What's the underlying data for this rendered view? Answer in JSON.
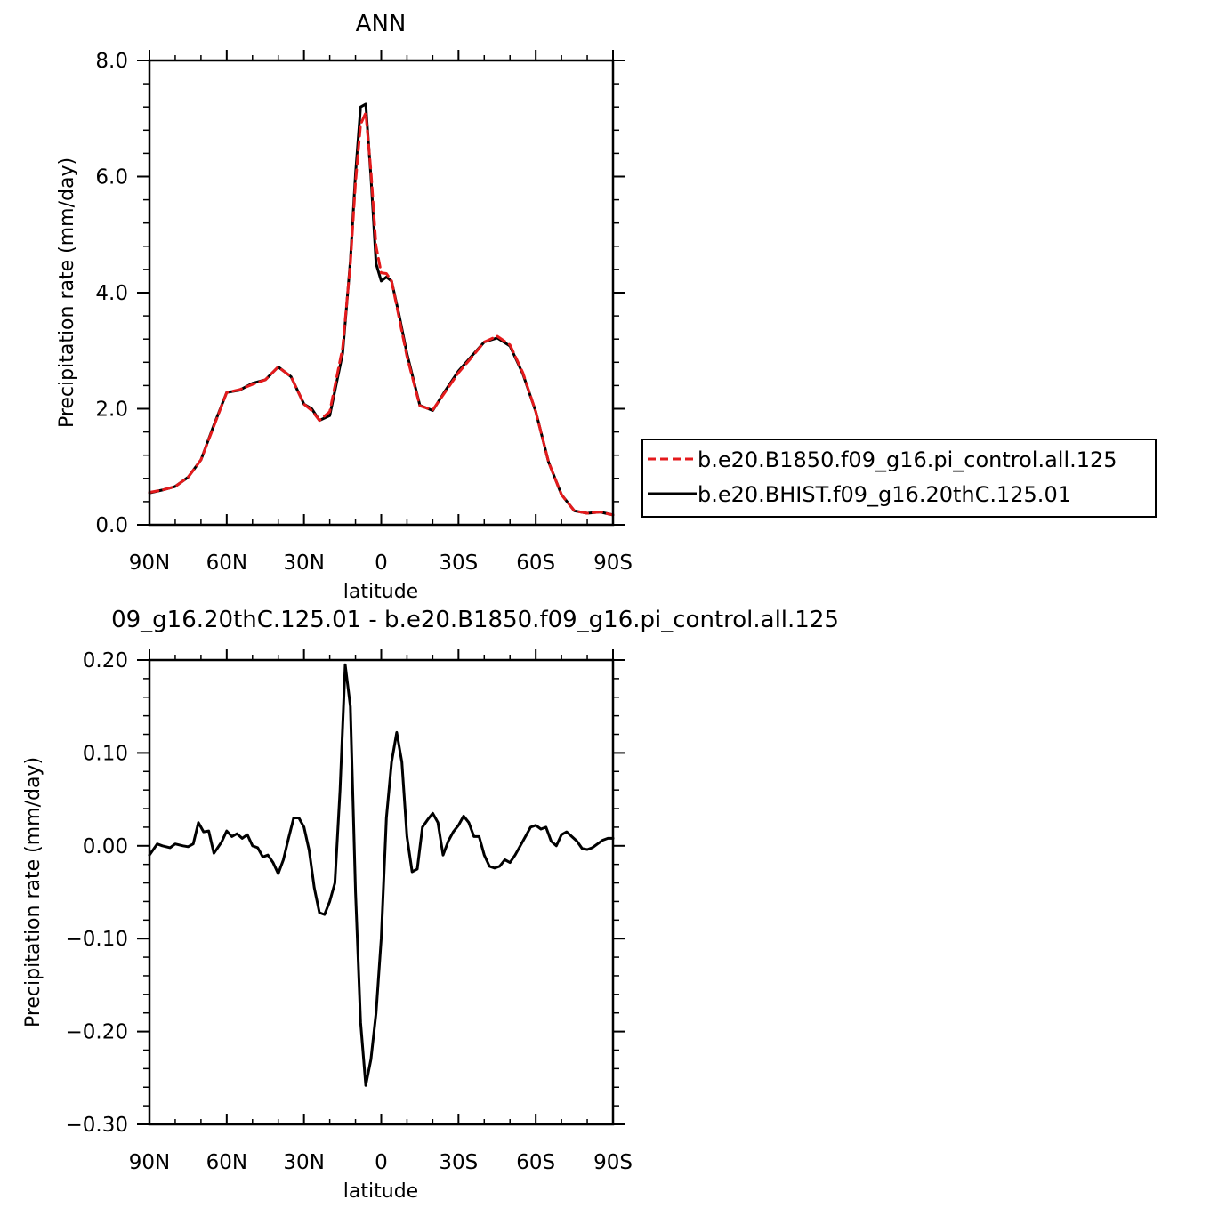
{
  "colors": {
    "red": "#e41a1c",
    "black": "#000000"
  },
  "chart_data": [
    {
      "type": "line",
      "title": "ANN",
      "xlabel": "latitude",
      "ylabel": "Precipitation rate (mm/day)",
      "xlim": [
        -90,
        90
      ],
      "ylim": [
        0,
        8
      ],
      "x_tick_values": [
        -90,
        -60,
        -30,
        0,
        30,
        60,
        90
      ],
      "x_tick_labels": [
        "90N",
        "60N",
        "30N",
        "0",
        "30S",
        "60S",
        "90S"
      ],
      "y_tick_values": [
        0,
        2,
        4,
        6,
        8
      ],
      "y_tick_labels": [
        "0.0",
        "2.0",
        "4.0",
        "6.0",
        "8.0"
      ],
      "legend_position": "right",
      "x": [
        -90,
        -85,
        -80,
        -75,
        -70,
        -65,
        -60,
        -55,
        -50,
        -45,
        -40,
        -35,
        -30,
        -27,
        -24,
        -20,
        -15,
        -12,
        -10,
        -8,
        -6,
        -4,
        -2,
        0,
        2,
        4,
        7,
        10,
        15,
        20,
        25,
        30,
        35,
        40,
        45,
        50,
        55,
        60,
        65,
        70,
        75,
        80,
        85,
        90
      ],
      "series": [
        {
          "name": "b.e20.B1850.f09_g16.pi_control.all.125",
          "color": "#e41a1c",
          "dash": "dashed",
          "values": [
            0.56,
            0.6,
            0.66,
            0.82,
            1.12,
            1.7,
            2.28,
            2.33,
            2.42,
            2.5,
            2.72,
            2.55,
            2.08,
            1.97,
            1.8,
            1.95,
            3.05,
            4.5,
            5.9,
            6.9,
            7.1,
            6.1,
            4.8,
            4.34,
            4.33,
            4.2,
            3.55,
            2.9,
            2.05,
            1.98,
            2.3,
            2.62,
            2.88,
            3.15,
            3.25,
            3.1,
            2.62,
            1.95,
            1.08,
            0.52,
            0.24,
            0.2,
            0.22,
            0.17
          ]
        },
        {
          "name": "b.e20.BHIST.f09_g16.20thC.125.01",
          "color": "#000000",
          "dash": "solid",
          "values": [
            0.55,
            0.6,
            0.66,
            0.82,
            1.12,
            1.72,
            2.28,
            2.32,
            2.44,
            2.5,
            2.72,
            2.55,
            2.08,
            2.0,
            1.8,
            1.88,
            2.95,
            4.55,
            6.05,
            7.2,
            7.25,
            6.0,
            4.5,
            4.2,
            4.27,
            4.2,
            3.6,
            2.95,
            2.06,
            1.97,
            2.32,
            2.65,
            2.9,
            3.15,
            3.22,
            3.08,
            2.6,
            1.95,
            1.08,
            0.52,
            0.24,
            0.2,
            0.22,
            0.17
          ]
        }
      ]
    },
    {
      "type": "line",
      "title": "09_g16.20thC.125.01 - b.e20.B1850.f09_g16.pi_control.all.125",
      "xlabel": "latitude",
      "ylabel": "Precipitation rate (mm/day)",
      "xlim": [
        -90,
        90
      ],
      "ylim": [
        -0.3,
        0.2
      ],
      "x_tick_values": [
        -90,
        -60,
        -30,
        0,
        30,
        60,
        90
      ],
      "x_tick_labels": [
        "90N",
        "60N",
        "30N",
        "0",
        "30S",
        "60S",
        "90S"
      ],
      "y_tick_values": [
        -0.3,
        -0.2,
        -0.1,
        0,
        0.1,
        0.2
      ],
      "y_tick_labels": [
        "−0.30",
        "−0.20",
        "−0.10",
        "0.00",
        "0.10",
        "0.20"
      ],
      "x": [
        -90,
        -87,
        -85,
        -82,
        -80,
        -77,
        -75,
        -73,
        -71,
        -69,
        -67,
        -65,
        -62,
        -60,
        -58,
        -56,
        -54,
        -52,
        -50,
        -48,
        -46,
        -44,
        -42,
        -40,
        -38,
        -36,
        -34,
        -32,
        -30,
        -28,
        -26,
        -24,
        -22,
        -20,
        -18,
        -16,
        -14,
        -12,
        -10,
        -8,
        -6,
        -4,
        -2,
        0,
        2,
        4,
        6,
        8,
        10,
        12,
        14,
        16,
        18,
        20,
        22,
        24,
        26,
        28,
        30,
        32,
        34,
        36,
        38,
        40,
        42,
        44,
        46,
        48,
        50,
        52,
        54,
        56,
        58,
        60,
        62,
        64,
        66,
        68,
        70,
        72,
        74,
        76,
        78,
        80,
        82,
        84,
        86,
        88,
        90
      ],
      "series": [
        {
          "name": "",
          "color": "#000000",
          "dash": "solid",
          "values": [
            -0.01,
            0.002,
            0.0,
            -0.002,
            0.002,
            0.0,
            -0.001,
            0.002,
            0.025,
            0.015,
            0.016,
            -0.008,
            0.004,
            0.016,
            0.01,
            0.013,
            0.008,
            0.012,
            0.0,
            -0.002,
            -0.012,
            -0.01,
            -0.018,
            -0.03,
            -0.015,
            0.008,
            0.03,
            0.03,
            0.02,
            -0.005,
            -0.045,
            -0.072,
            -0.074,
            -0.06,
            -0.04,
            0.06,
            0.195,
            0.15,
            -0.05,
            -0.19,
            -0.258,
            -0.23,
            -0.18,
            -0.1,
            0.03,
            0.09,
            0.122,
            0.09,
            0.01,
            -0.028,
            -0.025,
            0.02,
            0.028,
            0.035,
            0.025,
            -0.01,
            0.005,
            0.015,
            0.022,
            0.032,
            0.025,
            0.01,
            0.01,
            -0.01,
            -0.022,
            -0.024,
            -0.022,
            -0.015,
            -0.018,
            -0.01,
            0.0,
            0.01,
            0.02,
            0.022,
            0.018,
            0.02,
            0.005,
            0.0,
            0.012,
            0.015,
            0.01,
            0.005,
            -0.003,
            -0.004,
            -0.002,
            0.002,
            0.006,
            0.008,
            0.008
          ]
        }
      ]
    }
  ]
}
